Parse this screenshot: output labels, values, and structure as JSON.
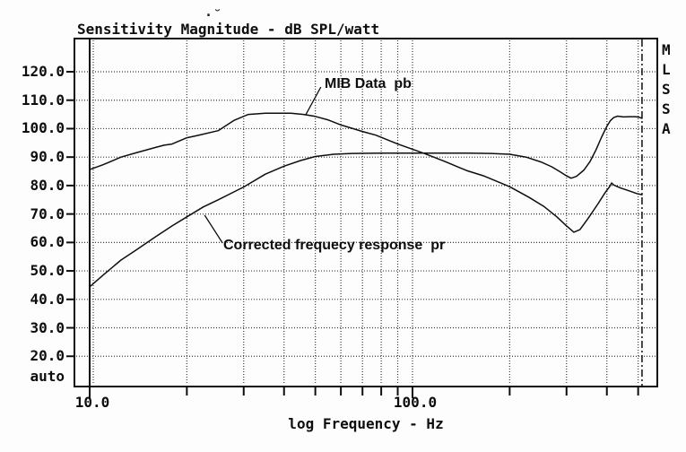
{
  "colors": {
    "ink": "#0e0e0e",
    "grid": "#3c3c3c",
    "background": "#fdfdfd"
  },
  "title": "Sensitivity Magnitude - dB SPL/watt",
  "decor": {
    "smudge_mark": "·˘",
    "watermark": "MLSSA"
  },
  "y_axis": {
    "ticks": [
      {
        "value": 120,
        "label": "120.0"
      },
      {
        "value": 110,
        "label": "110.0"
      },
      {
        "value": 100,
        "label": "100.0"
      },
      {
        "value": 90,
        "label": "90.0"
      },
      {
        "value": 80,
        "label": "80.0"
      },
      {
        "value": 70,
        "label": "70.0"
      },
      {
        "value": 60,
        "label": "60.0"
      },
      {
        "value": 50,
        "label": "50.0"
      },
      {
        "value": 40,
        "label": "40.0"
      },
      {
        "value": 30,
        "label": "30.0"
      },
      {
        "value": 20,
        "label": "20.0"
      }
    ],
    "bottom_label": "auto"
  },
  "x_axis": {
    "label": "log Frequency - Hz",
    "major_labels": [
      {
        "freq_hz": 10,
        "label": "10.0"
      },
      {
        "freq_hz": 100,
        "label": "100.0"
      }
    ],
    "tick_freqs_hz": [
      10,
      20,
      30,
      40,
      50,
      60,
      70,
      80,
      90,
      100,
      200,
      300,
      400,
      500
    ],
    "grid_freqs_hz": [
      20,
      30,
      40,
      50,
      60,
      70,
      80,
      90,
      100,
      200,
      300,
      400,
      500
    ],
    "solid_grid_hz": 10
  },
  "chart_data": {
    "type": "line",
    "title": "Sensitivity Magnitude - dB SPL/watt",
    "xlabel": "log Frequency - Hz",
    "ylabel": "dB SPL/watt",
    "x_scale": "log",
    "xlim_hz": [
      9,
      592
    ],
    "ylim_db": [
      20,
      120
    ],
    "grid": true,
    "cursor_freq_hz": 514,
    "series": [
      {
        "name": "MIB Data  pb",
        "x_hz": [
          10,
          11,
          12.5,
          14,
          16,
          17,
          18,
          20,
          21,
          22,
          25,
          28,
          31,
          35,
          42,
          46,
          50,
          55,
          60,
          70,
          77,
          90,
          108,
          125,
          147,
          167,
          200,
          230,
          255,
          280,
          300,
          316,
          330,
          350,
          375,
          395,
          408,
          414,
          420,
          440,
          470,
          495,
          514
        ],
        "y_db": [
          85.6,
          87.3,
          90.0,
          91.6,
          93.4,
          94.2,
          94.6,
          96.8,
          97.3,
          97.8,
          99.3,
          102.9,
          105.0,
          105.4,
          105.4,
          105.0,
          104.3,
          103.0,
          101.3,
          99.0,
          97.7,
          94.6,
          91.4,
          88.6,
          85.3,
          83.3,
          79.6,
          75.8,
          72.7,
          69.0,
          65.8,
          63.6,
          64.5,
          68.5,
          73.5,
          77.5,
          79.6,
          80.9,
          80.2,
          79.2,
          78.1,
          77.2,
          76.8
        ]
      },
      {
        "name": "Corrected frequecy response  pr",
        "x_hz": [
          10,
          11,
          12.5,
          14,
          16,
          18,
          20,
          22.5,
          25,
          30,
          35,
          40,
          45,
          50,
          57,
          65,
          80,
          100,
          125,
          150,
          175,
          200,
          225,
          250,
          270,
          285,
          300,
          310,
          322,
          340,
          355,
          370,
          385,
          400,
          410,
          420,
          432,
          450,
          470,
          490,
          505,
          514
        ],
        "y_db": [
          44.4,
          48.5,
          53.8,
          57.5,
          62.0,
          65.8,
          69.0,
          72.5,
          75.0,
          79.5,
          84.0,
          86.8,
          88.8,
          90.2,
          91.0,
          91.3,
          91.4,
          91.4,
          91.4,
          91.4,
          91.3,
          91.0,
          90.0,
          88.3,
          86.6,
          85.0,
          83.4,
          82.6,
          83.2,
          85.5,
          88.5,
          92.5,
          97.0,
          100.8,
          102.8,
          103.9,
          104.4,
          104.1,
          104.2,
          104.2,
          104.0,
          103.6
        ]
      }
    ],
    "annotations": [
      {
        "series": 0,
        "label_freq_hz": 53.4,
        "label_db": 118.1,
        "leader": [
          [
            52.0,
            114.6
          ],
          [
            46.7,
            104.9
          ]
        ]
      },
      {
        "series": 1,
        "label_freq_hz": 25.9,
        "label_db": 61.4,
        "leader": [
          [
            25.8,
            59.8
          ],
          [
            22.7,
            69.6
          ]
        ]
      }
    ]
  }
}
